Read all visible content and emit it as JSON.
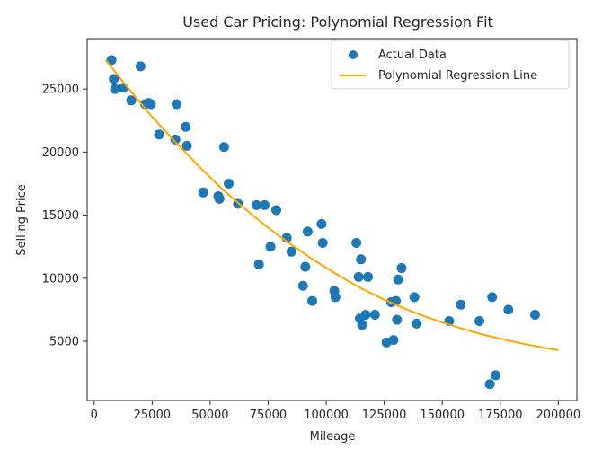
{
  "chart_data": {
    "type": "scatter",
    "title": "Used Car Pricing: Polynomial Regression Fit",
    "xlabel": "Mileage",
    "ylabel": "Selling Price",
    "xlim": [
      -3000,
      208000
    ],
    "ylim": [
      300,
      29000
    ],
    "xticks": [
      0,
      25000,
      50000,
      75000,
      100000,
      125000,
      150000,
      175000,
      200000
    ],
    "yticks": [
      5000,
      10000,
      15000,
      20000,
      25000
    ],
    "grid": false,
    "legend": {
      "placement": "top-right",
      "entries": [
        "Actual Data",
        "Polynomial Regression Line"
      ]
    },
    "colors": {
      "points": "#1f77b4",
      "line": "#ffa500"
    },
    "series": [
      {
        "name": "Actual Data",
        "kind": "scatter",
        "points": [
          [
            7500,
            27300
          ],
          [
            8500,
            25800
          ],
          [
            9000,
            25000
          ],
          [
            12500,
            25100
          ],
          [
            16000,
            24100
          ],
          [
            20000,
            26800
          ],
          [
            22000,
            23800
          ],
          [
            23500,
            23900
          ],
          [
            24500,
            23800
          ],
          [
            28000,
            21400
          ],
          [
            35000,
            21000
          ],
          [
            35500,
            23800
          ],
          [
            39500,
            22000
          ],
          [
            40000,
            20500
          ],
          [
            47000,
            16800
          ],
          [
            53500,
            16500
          ],
          [
            54000,
            16300
          ],
          [
            56000,
            20400
          ],
          [
            58000,
            17500
          ],
          [
            62000,
            15900
          ],
          [
            70000,
            15800
          ],
          [
            71000,
            11100
          ],
          [
            73500,
            15800
          ],
          [
            76000,
            12500
          ],
          [
            78500,
            15400
          ],
          [
            83000,
            13200
          ],
          [
            85000,
            12100
          ],
          [
            90000,
            9400
          ],
          [
            91000,
            10900
          ],
          [
            92000,
            13700
          ],
          [
            94000,
            8200
          ],
          [
            98000,
            14300
          ],
          [
            98500,
            12800
          ],
          [
            103500,
            9000
          ],
          [
            104000,
            8500
          ],
          [
            113000,
            12800
          ],
          [
            114000,
            10100
          ],
          [
            114500,
            6800
          ],
          [
            115000,
            11500
          ],
          [
            115500,
            6300
          ],
          [
            117000,
            7100
          ],
          [
            118000,
            10100
          ],
          [
            121000,
            7100
          ],
          [
            126000,
            4900
          ],
          [
            128000,
            8100
          ],
          [
            129000,
            5100
          ],
          [
            130000,
            8200
          ],
          [
            130500,
            6700
          ],
          [
            131000,
            9900
          ],
          [
            132500,
            10800
          ],
          [
            138000,
            8500
          ],
          [
            139000,
            6400
          ],
          [
            153000,
            6600
          ],
          [
            158000,
            7900
          ],
          [
            166000,
            6600
          ],
          [
            170500,
            1600
          ],
          [
            171500,
            8500
          ],
          [
            173000,
            2300
          ],
          [
            178500,
            7500
          ],
          [
            190000,
            7100
          ]
        ]
      },
      {
        "name": "Polynomial Regression Line",
        "kind": "line",
        "x": [
          5000,
          15000,
          25000,
          35000,
          45000,
          55000,
          65000,
          75000,
          85000,
          95000,
          105000,
          115000,
          125000,
          135000,
          145000,
          155000,
          165000,
          175000,
          185000,
          195000,
          200000
        ],
        "y": [
          27300,
          25000,
          22800,
          20800,
          18900,
          17100,
          15500,
          14000,
          12650,
          11400,
          10250,
          9200,
          8300,
          7500,
          6800,
          6200,
          5650,
          5200,
          4800,
          4450,
          4300
        ]
      }
    ]
  }
}
